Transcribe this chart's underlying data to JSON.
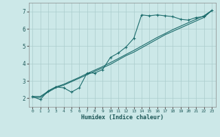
{
  "title": "",
  "xlabel": "Humidex (Indice chaleur)",
  "ylabel": "",
  "background_color": "#cce8e8",
  "grid_color": "#aacccc",
  "line_color": "#1a6b6b",
  "x_main": [
    0,
    1,
    2,
    3,
    4,
    5,
    6,
    7,
    8,
    9,
    10,
    11,
    12,
    13,
    14,
    15,
    16,
    17,
    18,
    19,
    20,
    21,
    22,
    23
  ],
  "y_main": [
    2.1,
    1.92,
    2.42,
    2.65,
    2.6,
    2.35,
    2.6,
    3.45,
    3.45,
    3.65,
    4.35,
    4.6,
    4.95,
    5.45,
    6.8,
    6.75,
    6.8,
    6.75,
    6.7,
    6.55,
    6.5,
    6.65,
    6.7,
    7.05
  ],
  "x_line1": [
    0,
    1,
    2,
    3,
    4,
    5,
    6,
    7,
    8,
    9,
    10,
    11,
    12,
    13,
    14,
    15,
    16,
    17,
    18,
    19,
    20,
    21,
    22,
    23
  ],
  "y_line1": [
    2.05,
    2.05,
    2.35,
    2.6,
    2.75,
    2.95,
    3.15,
    3.35,
    3.55,
    3.75,
    3.95,
    4.2,
    4.45,
    4.65,
    4.9,
    5.15,
    5.4,
    5.65,
    5.85,
    6.05,
    6.25,
    6.45,
    6.65,
    7.05
  ],
  "x_line2": [
    0,
    1,
    2,
    3,
    4,
    5,
    6,
    7,
    8,
    9,
    10,
    11,
    12,
    13,
    14,
    15,
    16,
    17,
    18,
    19,
    20,
    21,
    22,
    23
  ],
  "y_line2": [
    2.1,
    2.1,
    2.4,
    2.65,
    2.8,
    3.0,
    3.2,
    3.42,
    3.62,
    3.82,
    4.05,
    4.28,
    4.52,
    4.75,
    5.0,
    5.25,
    5.5,
    5.72,
    5.95,
    6.15,
    6.35,
    6.55,
    6.75,
    7.05
  ],
  "xlim": [
    -0.5,
    23.5
  ],
  "ylim": [
    1.5,
    7.5
  ],
  "yticks": [
    2,
    3,
    4,
    5,
    6,
    7
  ],
  "xticks": [
    0,
    1,
    2,
    3,
    4,
    5,
    6,
    7,
    8,
    9,
    10,
    11,
    12,
    13,
    14,
    15,
    16,
    17,
    18,
    19,
    20,
    21,
    22,
    23
  ]
}
